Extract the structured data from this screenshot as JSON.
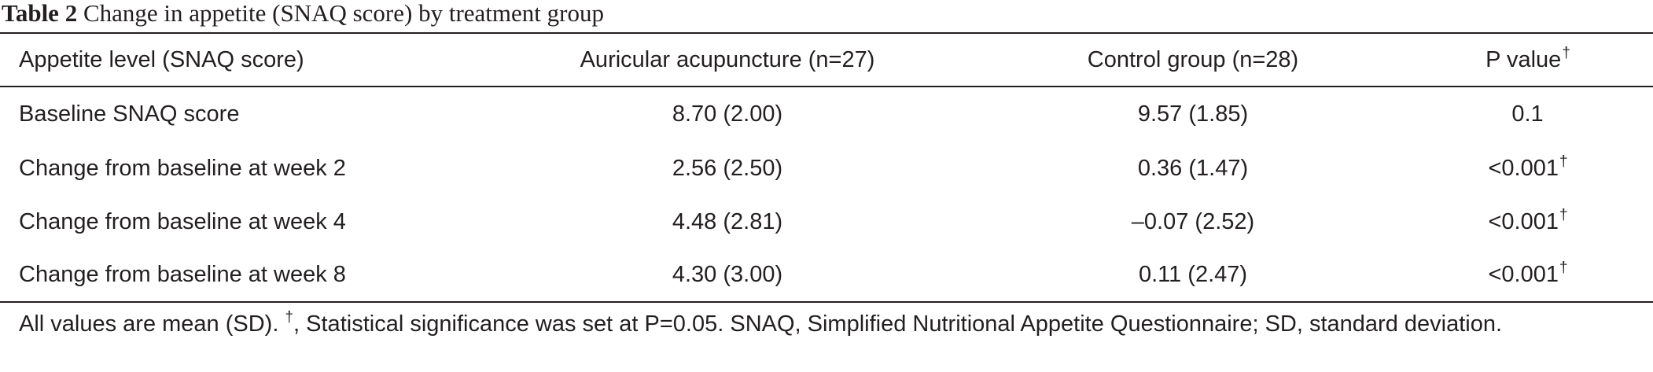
{
  "caption": {
    "label": "Table 2",
    "title": "Change in appetite (SNAQ score) by treatment group"
  },
  "table": {
    "headers": [
      "Appetite level (SNAQ score)",
      "Auricular acupuncture (n=27)",
      "Control group (n=28)",
      "P value"
    ],
    "header_p_mark": "†",
    "rows": [
      {
        "label": "Baseline SNAQ score",
        "acupuncture": "8.70 (2.00)",
        "control": "9.57 (1.85)",
        "p": "0.1",
        "p_mark": ""
      },
      {
        "label": "Change from baseline at week 2",
        "acupuncture": "2.56 (2.50)",
        "control": "0.36 (1.47)",
        "p": "<0.001",
        "p_mark": "†"
      },
      {
        "label": "Change from baseline at week 4",
        "acupuncture": "4.48 (2.81)",
        "control": "–0.07 (2.52)",
        "p": "<0.001",
        "p_mark": "†"
      },
      {
        "label": "Change from baseline at week 8",
        "acupuncture": "4.30 (3.00)",
        "control": "0.11 (2.47)",
        "p": "<0.001",
        "p_mark": "†"
      }
    ]
  },
  "footnote": {
    "prefix": "All values are mean (SD). ",
    "mark": "†",
    "text": ", Statistical significance was set at P=0.05. SNAQ, Simplified Nutritional Appetite Questionnaire; SD, standard deviation."
  }
}
